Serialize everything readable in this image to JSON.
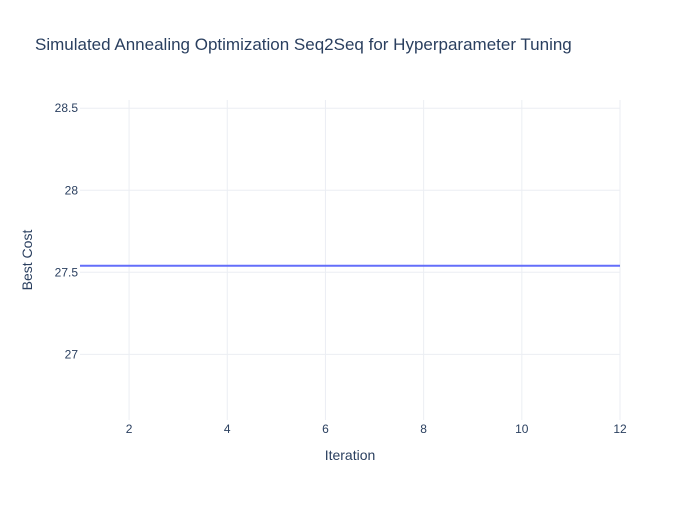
{
  "chart_data": {
    "type": "line",
    "title": "Simulated Annealing Optimization Seq2Seq for Hyperparameter Tuning",
    "xlabel": "Iteration",
    "ylabel": "Best Cost",
    "xlim": [
      1,
      12
    ],
    "ylim": [
      26.6,
      28.55
    ],
    "x_ticks": [
      2,
      4,
      6,
      8,
      10,
      12
    ],
    "y_ticks": [
      27,
      27.5,
      28,
      28.5
    ],
    "grid": true,
    "legend": "none",
    "series": [
      {
        "color": "#636efa",
        "x": [
          1,
          2,
          3,
          4,
          5,
          6,
          7,
          8,
          9,
          10,
          11,
          12
        ],
        "y": [
          27.54,
          27.54,
          27.54,
          27.54,
          27.54,
          27.54,
          27.54,
          27.54,
          27.54,
          27.54,
          27.54,
          27.54
        ]
      }
    ],
    "colors": {
      "grid": "#ebeef3",
      "text": "#2a3f5f",
      "background": "#ffffff"
    }
  }
}
